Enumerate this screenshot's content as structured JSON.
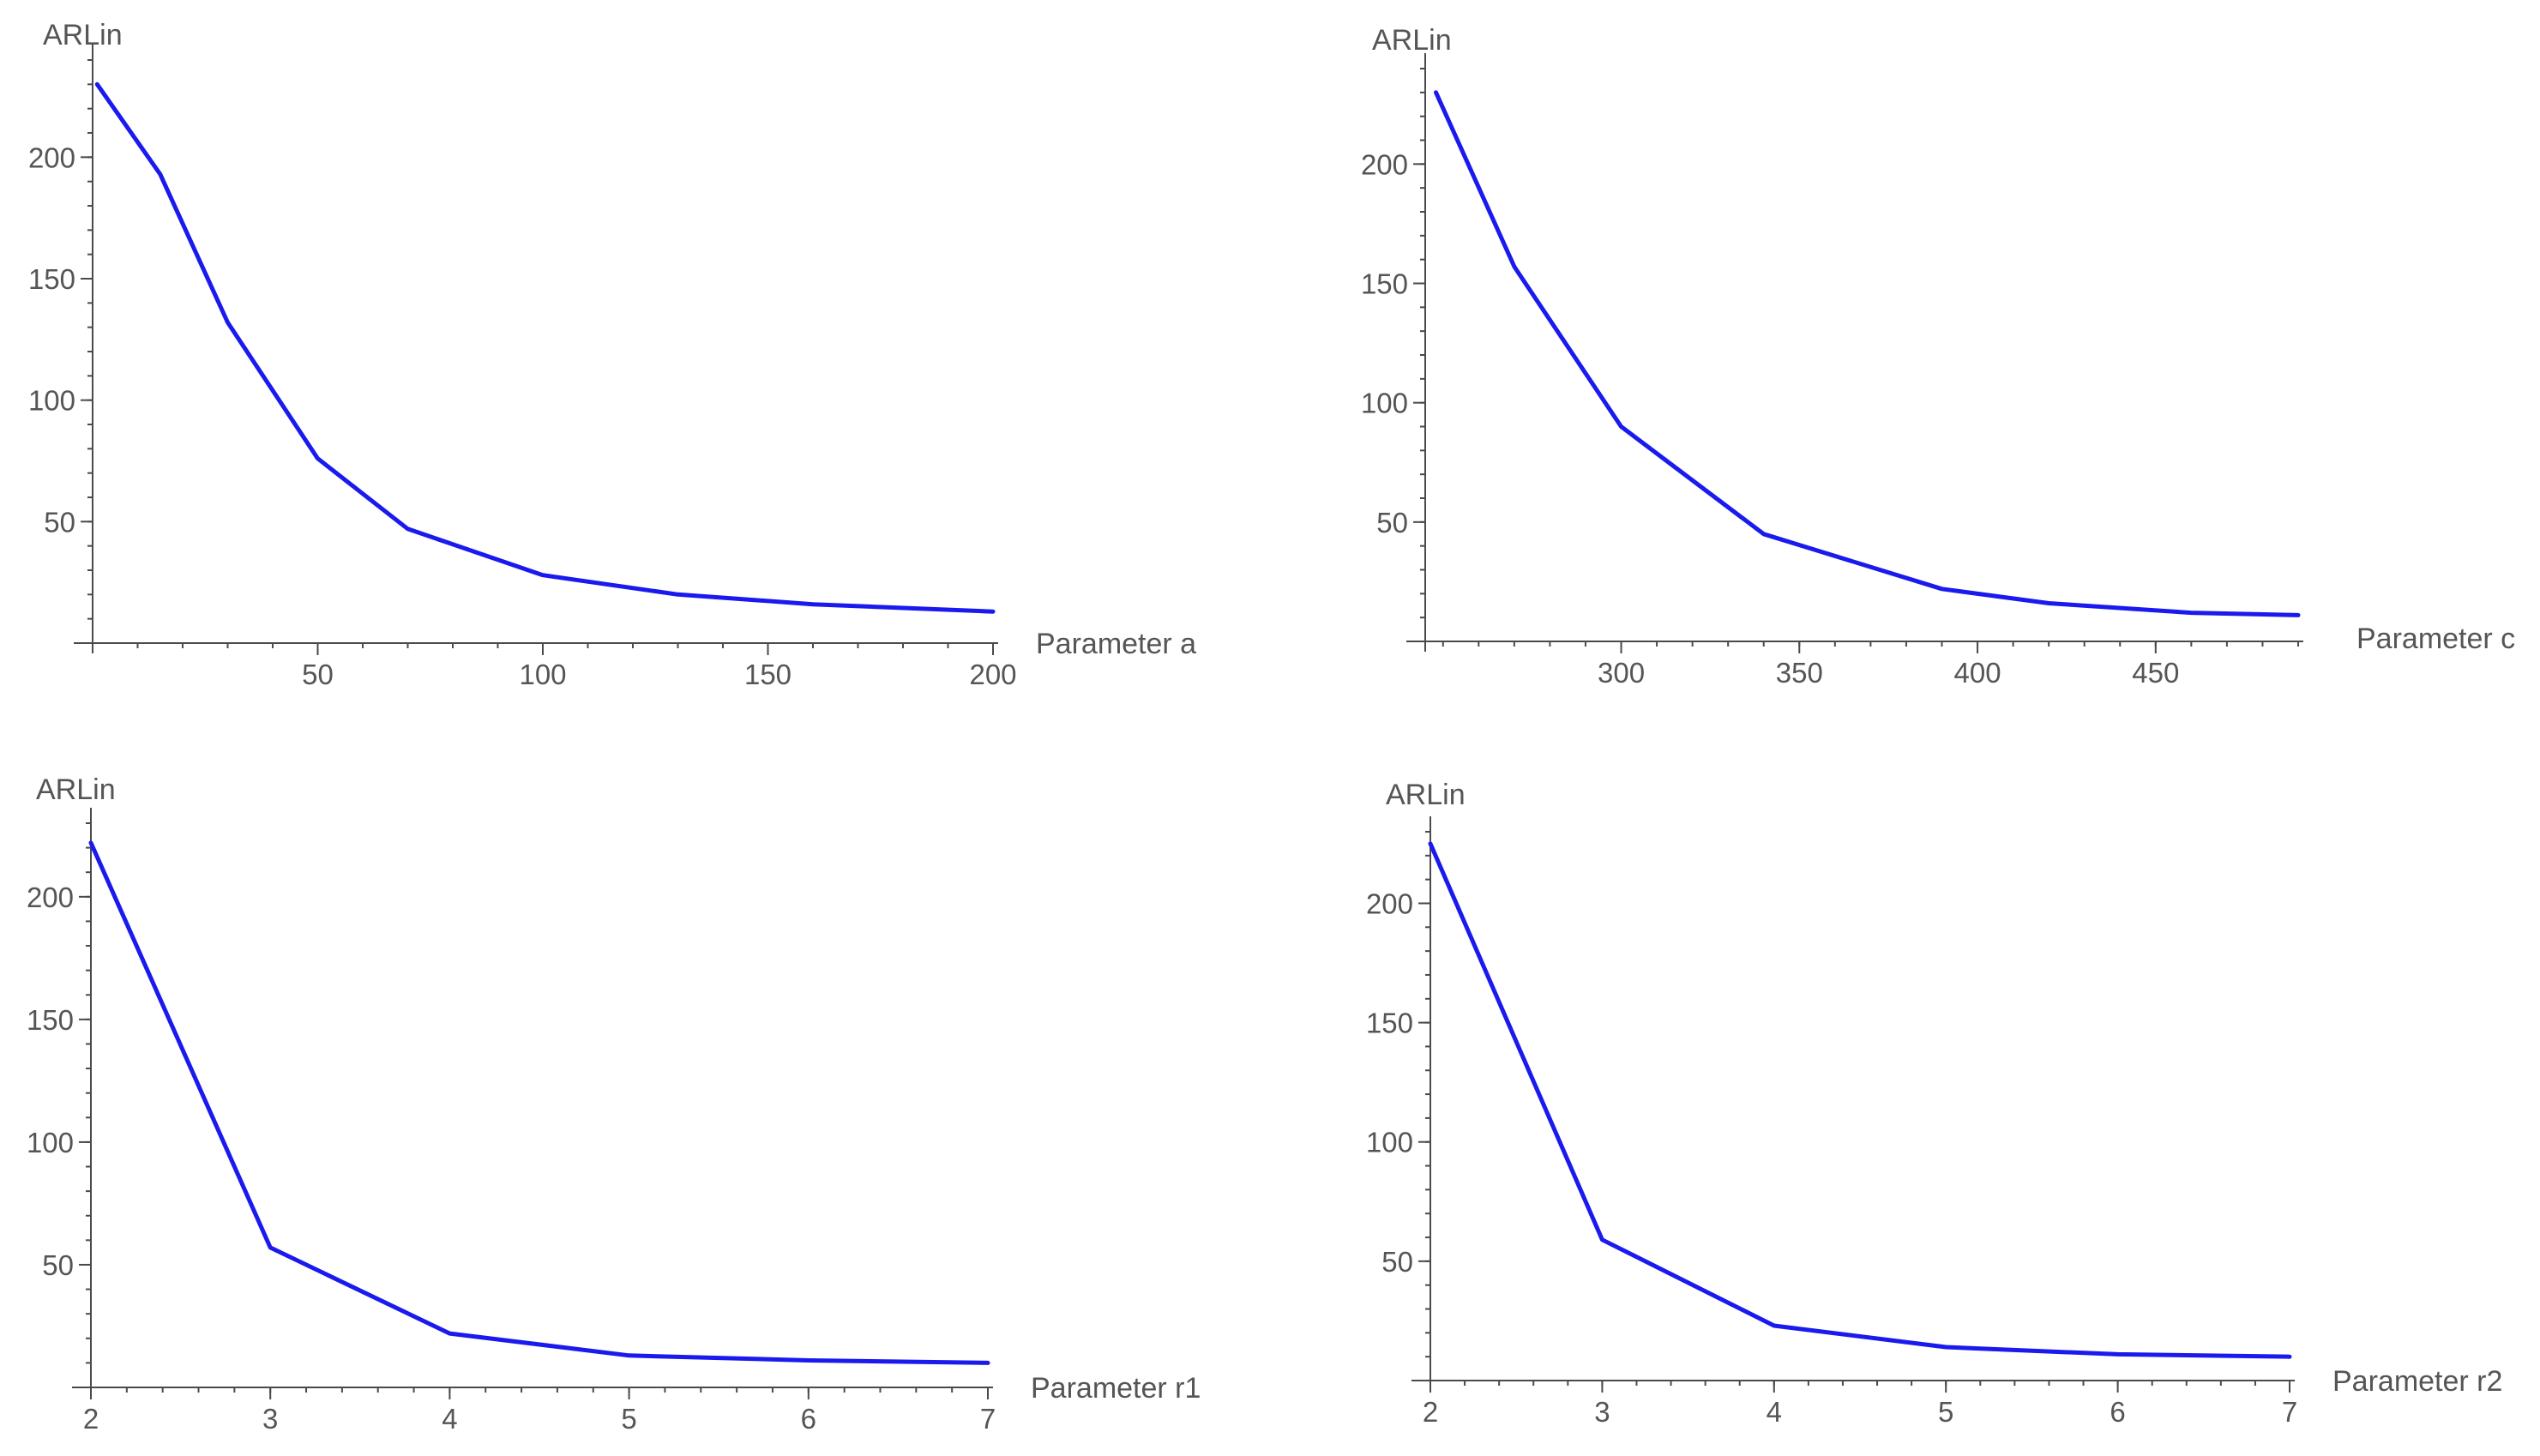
{
  "chart_data": [
    {
      "type": "line",
      "xlabel": "Parameter a",
      "ylabel": "ARLin",
      "xlim": [
        0,
        200
      ],
      "ylim": [
        0,
        240
      ],
      "xticks": [
        50,
        100,
        150,
        200
      ],
      "yticks": [
        50,
        100,
        150,
        200
      ],
      "xminor": 10,
      "yminor": 10,
      "line_color": "#1a1aee",
      "series": [
        {
          "x": [
            1,
            15,
            30,
            50,
            70,
            100,
            130,
            160,
            200
          ],
          "y": [
            230,
            193,
            132,
            76,
            47,
            28,
            20,
            16,
            13
          ]
        }
      ]
    },
    {
      "type": "line",
      "xlabel": "Parameter c",
      "ylabel": "ARLin",
      "xlim": [
        245,
        490
      ],
      "ylim": [
        0,
        240
      ],
      "xticks": [
        300,
        350,
        400,
        450
      ],
      "yticks": [
        50,
        100,
        150,
        200
      ],
      "xminor": 10,
      "yminor": 10,
      "line_color": "#1a1aee",
      "series": [
        {
          "x": [
            248,
            270,
            300,
            340,
            390,
            420,
            460,
            490
          ],
          "y": [
            230,
            157,
            90,
            45,
            22,
            16,
            12,
            11
          ]
        }
      ]
    },
    {
      "type": "line",
      "xlabel": "Parameter r1",
      "ylabel": "ARLin",
      "xlim": [
        2,
        7
      ],
      "ylim": [
        0,
        230
      ],
      "xticks": [
        2,
        3,
        4,
        5,
        6,
        7
      ],
      "yticks": [
        50,
        100,
        150,
        200
      ],
      "xminor": 0.2,
      "yminor": 10,
      "line_color": "#1a1aee",
      "series": [
        {
          "x": [
            2,
            3,
            4,
            5,
            6,
            7
          ],
          "y": [
            222,
            57,
            22,
            13,
            11,
            10
          ]
        }
      ]
    },
    {
      "type": "line",
      "xlabel": "Parameter r2",
      "ylabel": "ARLin",
      "xlim": [
        2,
        7
      ],
      "ylim": [
        0,
        230
      ],
      "xticks": [
        2,
        3,
        4,
        5,
        6,
        7
      ],
      "yticks": [
        50,
        100,
        150,
        200
      ],
      "xminor": 0.2,
      "yminor": 10,
      "line_color": "#1a1aee",
      "series": [
        {
          "x": [
            2,
            3,
            4,
            5,
            6,
            7
          ],
          "y": [
            225,
            59,
            23,
            14,
            11,
            10
          ]
        }
      ]
    }
  ]
}
